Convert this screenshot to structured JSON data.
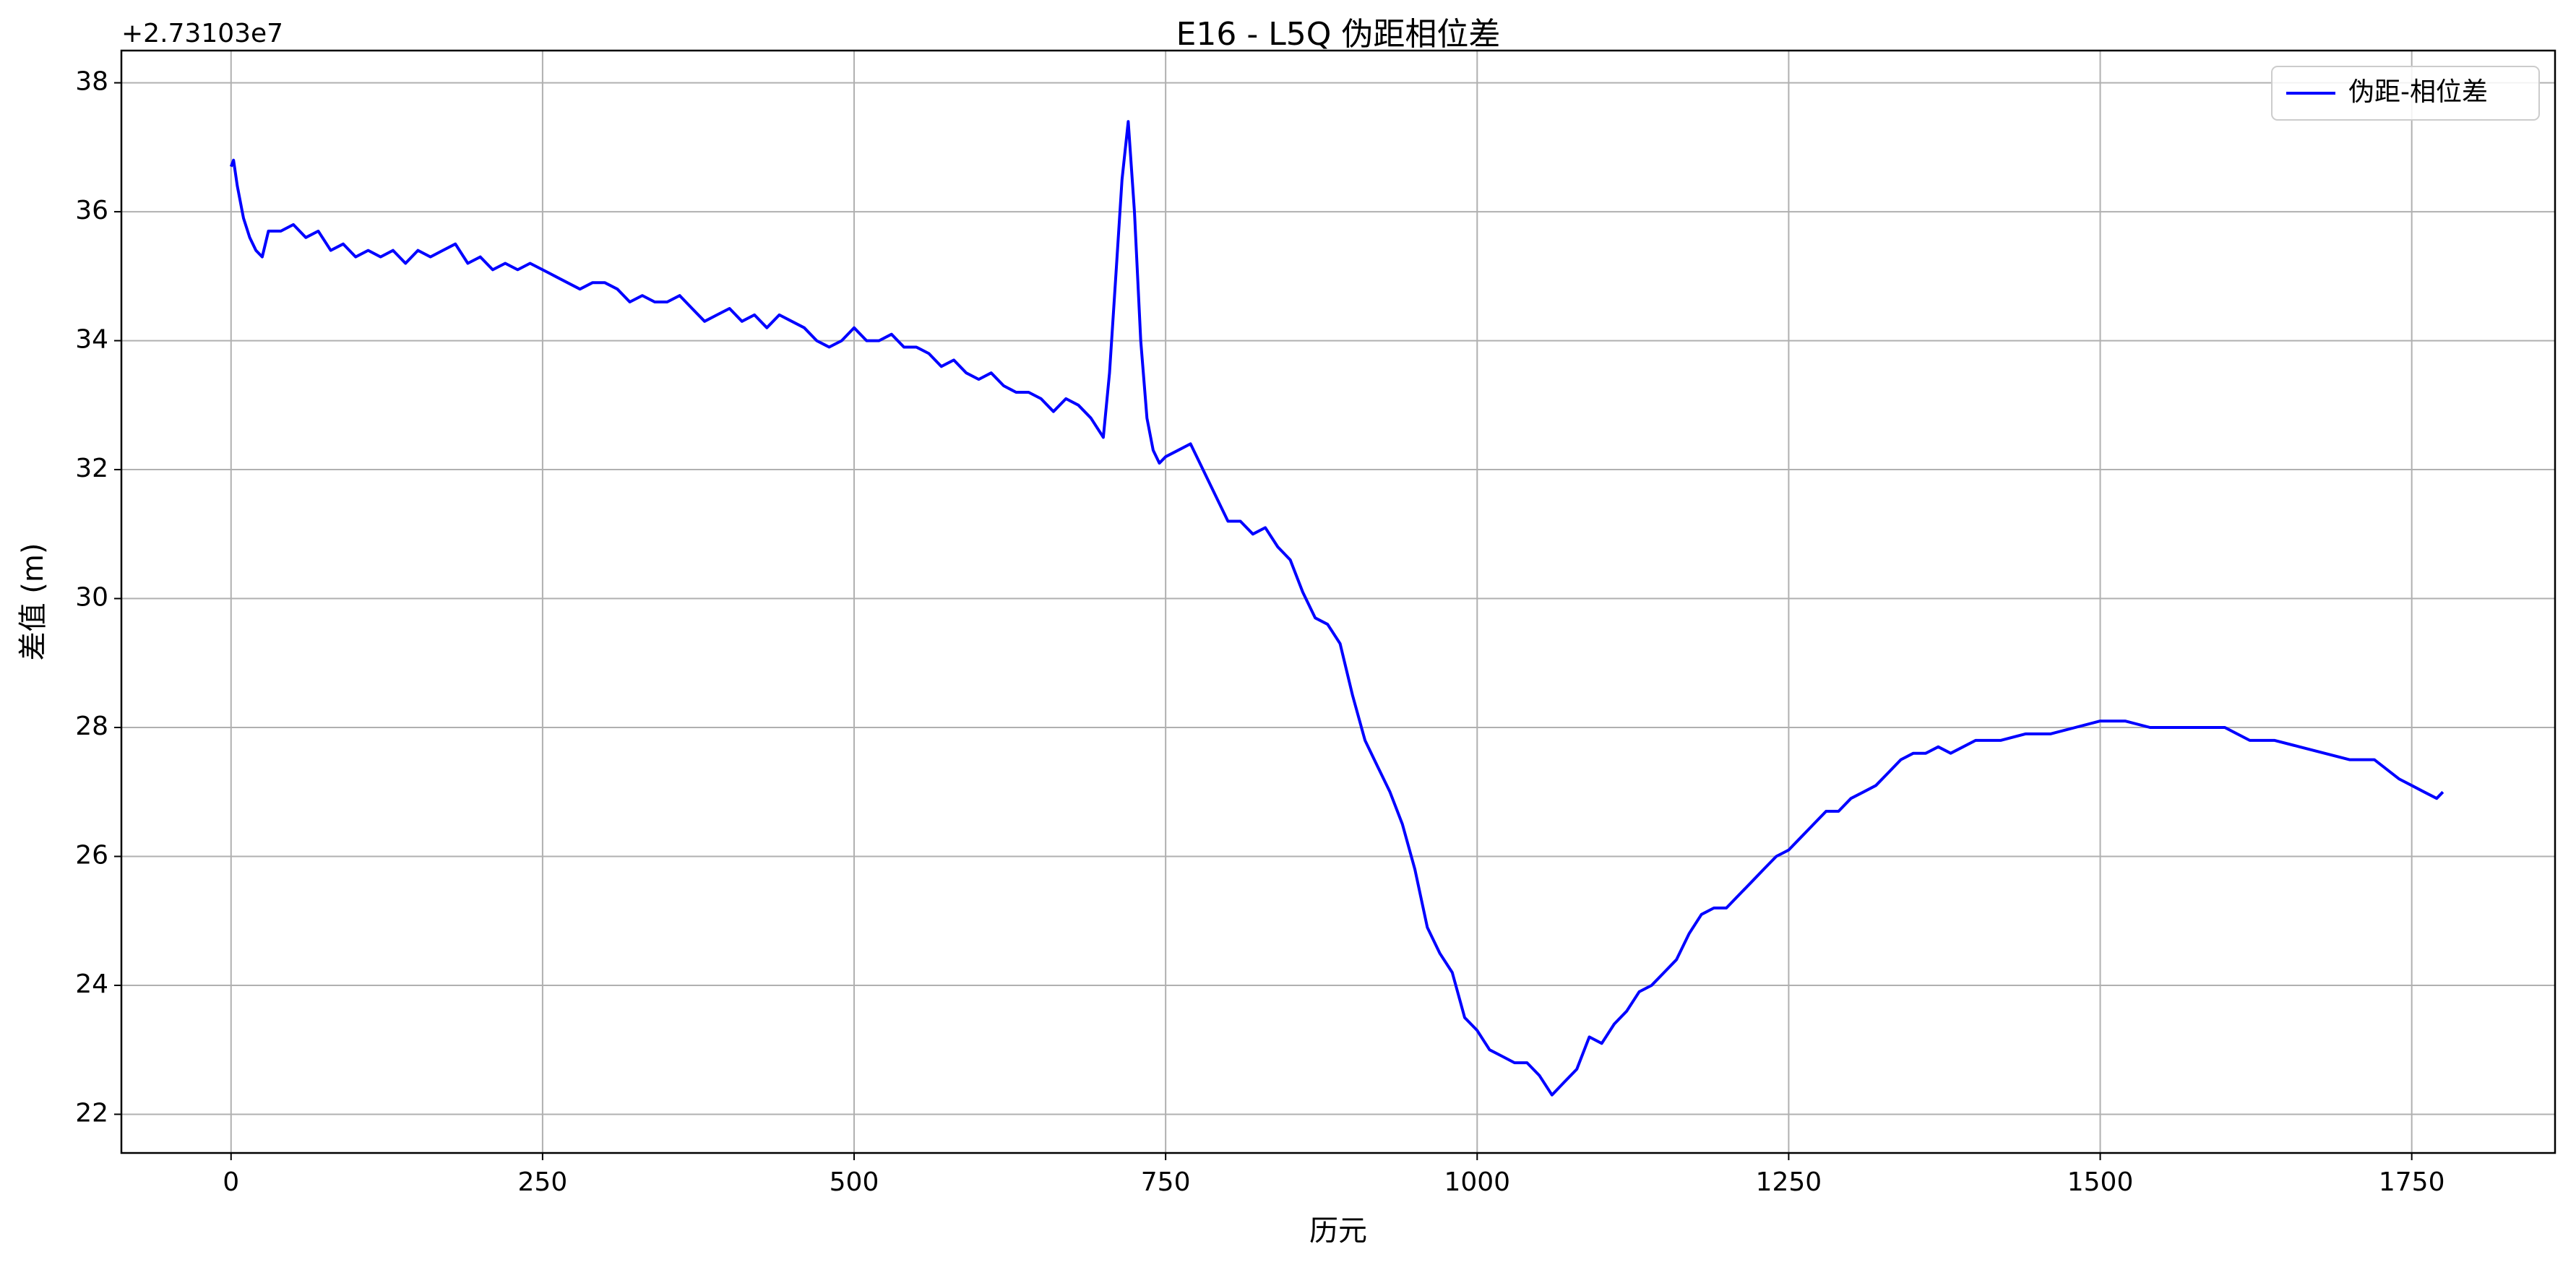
{
  "chart_data": {
    "type": "line",
    "title": "E16 - L5Q 伪距相位差",
    "xlabel": "历元",
    "ylabel": "差值 (m)",
    "y_offset_label": "+2.73103e7",
    "x": [
      0,
      2,
      5,
      10,
      15,
      20,
      25,
      30,
      40,
      50,
      60,
      70,
      80,
      90,
      100,
      110,
      120,
      130,
      140,
      150,
      160,
      170,
      180,
      190,
      200,
      210,
      220,
      230,
      240,
      250,
      260,
      270,
      280,
      290,
      300,
      310,
      320,
      330,
      340,
      350,
      360,
      370,
      380,
      390,
      400,
      410,
      420,
      430,
      440,
      450,
      460,
      470,
      480,
      490,
      500,
      510,
      520,
      530,
      540,
      550,
      560,
      570,
      580,
      590,
      600,
      610,
      620,
      630,
      640,
      650,
      660,
      670,
      680,
      690,
      700,
      705,
      710,
      715,
      720,
      725,
      730,
      735,
      740,
      745,
      750,
      760,
      770,
      780,
      790,
      800,
      810,
      820,
      830,
      840,
      850,
      860,
      870,
      880,
      890,
      900,
      910,
      920,
      930,
      940,
      950,
      960,
      970,
      980,
      990,
      1000,
      1010,
      1020,
      1030,
      1040,
      1050,
      1060,
      1070,
      1080,
      1090,
      1100,
      1110,
      1120,
      1130,
      1140,
      1150,
      1160,
      1170,
      1180,
      1190,
      1200,
      1210,
      1220,
      1230,
      1240,
      1250,
      1260,
      1270,
      1280,
      1290,
      1300,
      1310,
      1320,
      1330,
      1340,
      1350,
      1360,
      1370,
      1380,
      1390,
      1400,
      1420,
      1440,
      1460,
      1480,
      1500,
      1520,
      1540,
      1560,
      1580,
      1600,
      1620,
      1640,
      1660,
      1680,
      1700,
      1720,
      1740,
      1750,
      1760,
      1770,
      1775
    ],
    "series": [
      {
        "name": "伪距-相位差",
        "color": "#0000ff",
        "values": [
          36.7,
          36.8,
          36.4,
          35.9,
          35.6,
          35.4,
          35.3,
          35.7,
          35.7,
          35.8,
          35.6,
          35.7,
          35.4,
          35.5,
          35.3,
          35.4,
          35.3,
          35.4,
          35.2,
          35.4,
          35.3,
          35.4,
          35.5,
          35.2,
          35.3,
          35.1,
          35.2,
          35.1,
          35.2,
          35.1,
          35.0,
          34.9,
          34.8,
          34.9,
          34.9,
          34.8,
          34.6,
          34.7,
          34.6,
          34.6,
          34.7,
          34.5,
          34.3,
          34.4,
          34.5,
          34.3,
          34.4,
          34.2,
          34.4,
          34.3,
          34.2,
          34.0,
          33.9,
          34.0,
          34.2,
          34.0,
          34.0,
          34.1,
          33.9,
          33.9,
          33.8,
          33.6,
          33.7,
          33.5,
          33.4,
          33.5,
          33.3,
          33.2,
          33.2,
          33.1,
          32.9,
          33.1,
          33.0,
          32.8,
          32.5,
          33.5,
          35.0,
          36.5,
          37.4,
          36.0,
          34.0,
          32.8,
          32.3,
          32.1,
          32.2,
          32.3,
          32.4,
          32.0,
          31.6,
          31.2,
          31.2,
          31.0,
          31.1,
          30.8,
          30.6,
          30.1,
          29.7,
          29.6,
          29.3,
          28.5,
          27.8,
          27.4,
          27.0,
          26.5,
          25.8,
          24.9,
          24.5,
          24.2,
          23.5,
          23.3,
          23.0,
          22.9,
          22.8,
          22.8,
          22.6,
          22.3,
          22.5,
          22.7,
          23.2,
          23.1,
          23.4,
          23.6,
          23.9,
          24.0,
          24.2,
          24.4,
          24.8,
          25.1,
          25.2,
          25.2,
          25.4,
          25.6,
          25.8,
          26.0,
          26.1,
          26.3,
          26.5,
          26.7,
          26.7,
          26.9,
          27.0,
          27.1,
          27.3,
          27.5,
          27.6,
          27.6,
          27.7,
          27.6,
          27.7,
          27.8,
          27.8,
          27.9,
          27.9,
          28.0,
          28.1,
          28.1,
          28.0,
          28.0,
          28.0,
          28.0,
          27.8,
          27.8,
          27.7,
          27.6,
          27.5,
          27.5,
          27.2,
          27.1,
          27.0,
          26.9,
          27.0
        ]
      }
    ],
    "xlim": [
      -88,
      1865
    ],
    "ylim": [
      21.4,
      38.5
    ],
    "xticks": [
      0,
      250,
      500,
      750,
      1000,
      1250,
      1500,
      1750
    ],
    "yticks": [
      22,
      24,
      26,
      28,
      30,
      32,
      34,
      36,
      38
    ],
    "grid": true,
    "legend": "upper right"
  }
}
